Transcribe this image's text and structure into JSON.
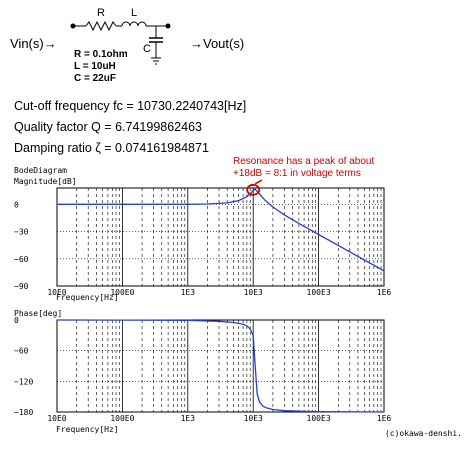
{
  "circuit": {
    "input_label": "Vin(s)→",
    "output_label": "→Vout(s)",
    "r_label": "R",
    "l_label": "L",
    "c_label": "C",
    "params": [
      "R = 0.1ohm",
      "L = 10uH",
      "C = 22uF"
    ]
  },
  "results": {
    "cutoff": "Cut-off frequency fc = 10730.2240743[Hz]",
    "quality": "Quality factor Q = 6.74199862463",
    "damping": "Damping ratio ζ = 0.074161984871"
  },
  "annotation": {
    "lines": [
      "Resonance has a peak of about",
      "+18dB = 8:1 in voltage terms"
    ],
    "color": "#cc0000",
    "target_freq": 10000,
    "target_value": 16
  },
  "bode_title": "BodeDiagram",
  "copyright": "(c)okawa-denshi.",
  "line_color": "#2a3fd0",
  "chart_data": [
    {
      "type": "line",
      "title": "",
      "ylabel": "Magnitude[dB]",
      "xlabel": "Frequency[Hz]",
      "xscale": "log",
      "xlim": [
        10,
        1000000
      ],
      "ylim": [
        -90,
        18
      ],
      "grid": true,
      "xticks": [
        10,
        100,
        1000,
        10000,
        100000,
        1000000
      ],
      "xtick_labels": [
        "10E0",
        "100E0",
        "1E3",
        "10E3",
        "100E3",
        "1E6"
      ],
      "yticks": [
        0,
        -30,
        -60,
        -90
      ],
      "ytick_labels": [
        "0",
        "−30",
        "−60",
        "−90"
      ],
      "x": [
        10,
        100,
        1000,
        2000,
        4000,
        6000,
        8000,
        9000,
        10000,
        10730,
        12000,
        15000,
        20000,
        30000,
        50000,
        100000,
        200000,
        500000,
        1000000
      ],
      "y": [
        0,
        0,
        0.09,
        0.36,
        1.6,
        4.1,
        8.4,
        11.6,
        15.2,
        16.6,
        12.8,
        4.9,
        -2.9,
        -11.6,
        -21.0,
        -33.2,
        -45.3,
        -61.3,
        -73.4
      ]
    },
    {
      "type": "line",
      "title": "",
      "ylabel": "Phase[deg]",
      "xlabel": "Frequency[Hz]",
      "xscale": "log",
      "xlim": [
        10,
        1000000
      ],
      "ylim": [
        -180,
        0
      ],
      "grid": true,
      "xticks": [
        10,
        100,
        1000,
        10000,
        100000,
        1000000
      ],
      "xtick_labels": [
        "10E0",
        "100E0",
        "1E3",
        "10E3",
        "100E3",
        "1E6"
      ],
      "yticks": [
        0,
        -60,
        -120,
        -180
      ],
      "ytick_labels": [
        "0",
        "−60",
        "−120",
        "−180"
      ],
      "x": [
        10,
        100,
        1000,
        3000,
        5000,
        7000,
        8000,
        9000,
        10000,
        10730,
        11500,
        12500,
        14000,
        16000,
        20000,
        30000,
        50000,
        100000,
        1000000
      ],
      "y": [
        0,
        -0.1,
        -0.8,
        -2.6,
        -4.9,
        -8.3,
        -11.6,
        -17.6,
        -30.7,
        -90,
        -145.0,
        -160.0,
        -168.5,
        -172.0,
        -175.2,
        -177.5,
        -178.5,
        -179.2,
        -180
      ]
    }
  ]
}
